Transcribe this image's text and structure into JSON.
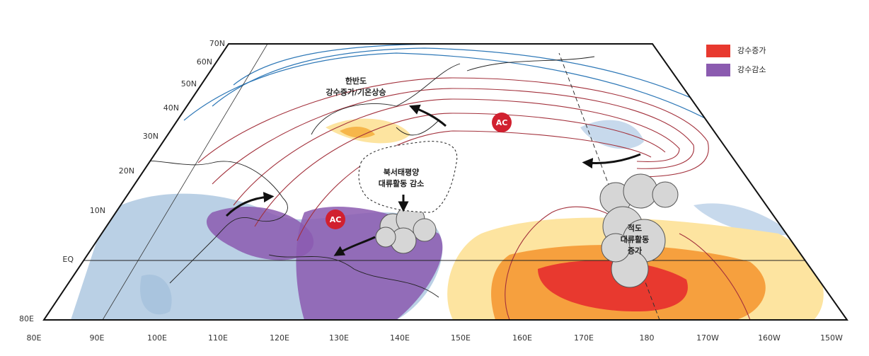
{
  "lat_labels": [
    "70N",
    "60N",
    "50N",
    "40N",
    "30N",
    "20N",
    "10N",
    "EQ",
    "80E"
  ],
  "lon_labels": [
    "80E",
    "90E",
    "100E",
    "110E",
    "120E",
    "130E",
    "140E",
    "150E",
    "160E",
    "170E",
    "180",
    "170W",
    "160W",
    "150W"
  ],
  "legend": [
    {
      "label": "강수증가",
      "color": "#e8392f"
    },
    {
      "label": "강수감소",
      "color": "#8b5bb0"
    }
  ],
  "annotations": [
    {
      "lines": [
        "한반도",
        "강수증가/기온상승"
      ]
    },
    {
      "lines": [
        "북서태평양",
        "대류활동 감소"
      ]
    },
    {
      "lines": [
        "적도",
        "대류활동",
        "증가"
      ]
    },
    {
      "lines": [
        "AC"
      ]
    },
    {
      "lines": [
        "AC"
      ]
    }
  ]
}
